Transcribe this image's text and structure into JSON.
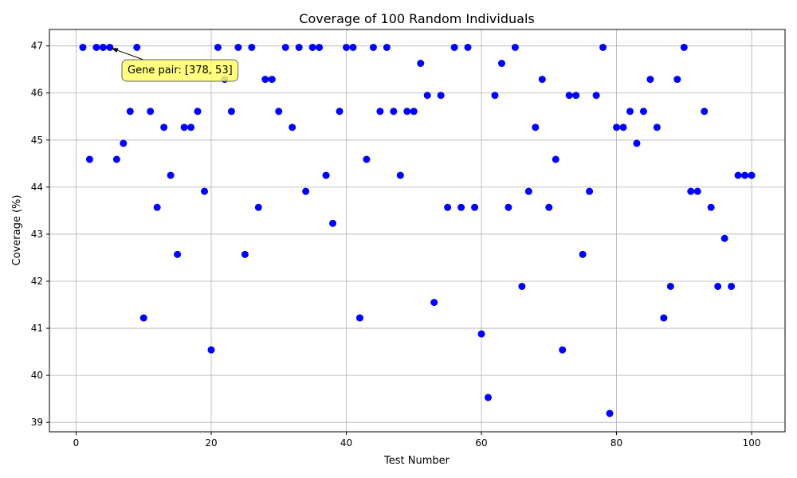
{
  "chart_data": {
    "type": "scatter",
    "title": "Coverage of 100 Random Individuals",
    "xlabel": "Test Number",
    "ylabel": "Coverage (%)",
    "xlim": [
      -3.95,
      104.95
    ],
    "ylim": [
      38.8,
      47.35
    ],
    "xticks": [
      0,
      20,
      40,
      60,
      80,
      100
    ],
    "yticks": [
      39,
      40,
      41,
      42,
      43,
      44,
      45,
      46,
      47
    ],
    "grid": true,
    "marker_color": "#0000ff",
    "annotation": {
      "text": "Gene pair: [378, 53]",
      "point": [
        5,
        46.97
      ],
      "box_color": "#ffff66"
    },
    "series": [
      {
        "name": "coverage",
        "x": [
          1,
          2,
          3,
          4,
          5,
          6,
          7,
          8,
          9,
          10,
          11,
          12,
          13,
          14,
          15,
          16,
          17,
          18,
          19,
          20,
          21,
          22,
          23,
          24,
          25,
          26,
          27,
          28,
          29,
          30,
          31,
          32,
          33,
          34,
          35,
          36,
          37,
          38,
          39,
          40,
          41,
          42,
          43,
          44,
          45,
          46,
          47,
          48,
          49,
          50,
          51,
          52,
          53,
          54,
          55,
          56,
          57,
          58,
          59,
          60,
          61,
          62,
          63,
          64,
          65,
          66,
          67,
          68,
          69,
          70,
          71,
          72,
          73,
          74,
          75,
          76,
          77,
          78,
          79,
          80,
          81,
          82,
          83,
          84,
          85,
          86,
          87,
          88,
          89,
          90,
          91,
          92,
          93,
          94,
          95,
          96,
          97,
          98,
          99,
          100
        ],
        "y": [
          46.97,
          44.59,
          46.97,
          46.97,
          46.97,
          44.59,
          44.93,
          45.61,
          46.97,
          41.22,
          45.61,
          43.57,
          45.27,
          44.25,
          42.57,
          45.27,
          45.27,
          45.61,
          43.91,
          40.54,
          46.97,
          46.29,
          45.61,
          46.97,
          42.57,
          46.97,
          43.57,
          46.29,
          46.29,
          45.61,
          46.97,
          45.27,
          46.97,
          43.91,
          46.97,
          46.97,
          44.25,
          43.23,
          45.61,
          46.97,
          46.97,
          41.22,
          44.59,
          46.97,
          45.61,
          46.97,
          45.61,
          44.25,
          45.61,
          45.61,
          46.63,
          45.95,
          41.55,
          45.95,
          43.57,
          46.97,
          43.57,
          46.97,
          43.57,
          40.88,
          39.53,
          45.95,
          46.63,
          43.57,
          46.97,
          41.89,
          43.91,
          45.27,
          46.29,
          43.57,
          44.59,
          40.54,
          45.95,
          45.95,
          42.57,
          43.91,
          45.95,
          46.97,
          39.19,
          45.27,
          45.27,
          45.61,
          44.93,
          45.61,
          46.29,
          45.27,
          41.22,
          41.89,
          46.29,
          46.97,
          43.91,
          43.91,
          45.61,
          43.57,
          41.89,
          42.91,
          41.89,
          44.25,
          44.25,
          44.25
        ]
      }
    ]
  }
}
